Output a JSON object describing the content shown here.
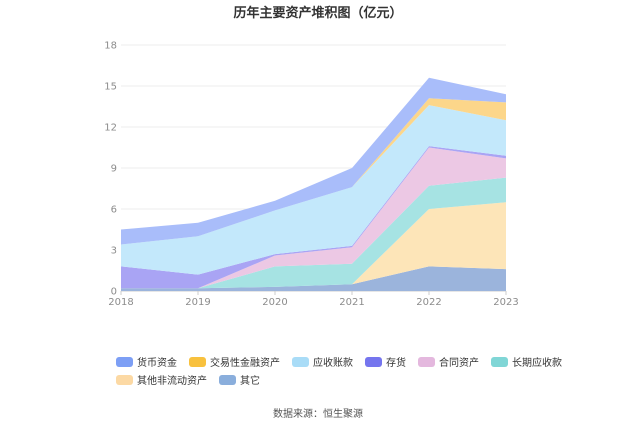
{
  "chart_data": {
    "type": "area",
    "stacked": true,
    "title": "历年主要资产堆积图（亿元）",
    "xlabel": "",
    "ylabel": "",
    "categories": [
      "2018",
      "2019",
      "2020",
      "2021",
      "2022",
      "2023"
    ],
    "ylim": [
      0,
      18
    ],
    "yticks": [
      0,
      3,
      6,
      9,
      12,
      15,
      18
    ],
    "grid": "horizontal",
    "legend_position": "bottom",
    "series": [
      {
        "name": "其它",
        "color": "#9bb4dc",
        "values": [
          0.2,
          0.2,
          0.3,
          0.5,
          1.8,
          1.6
        ]
      },
      {
        "name": "其他非流动资产",
        "color": "#fde5b8",
        "values": [
          0,
          0,
          0,
          0,
          4.2,
          4.9
        ]
      },
      {
        "name": "长期应收款",
        "color": "#a6e3e3",
        "values": [
          0,
          0,
          1.5,
          1.5,
          1.7,
          1.8
        ]
      },
      {
        "name": "合同资产",
        "color": "#ecc8e4",
        "values": [
          0,
          0,
          0.8,
          1.2,
          2.8,
          1.4
        ]
      },
      {
        "name": "存货",
        "color": "#a9a4f4",
        "values": [
          1.6,
          1.0,
          0.1,
          0.1,
          0.1,
          0.2
        ]
      },
      {
        "name": "应收账款",
        "color": "#c3e8fb",
        "values": [
          1.6,
          2.8,
          3.2,
          4.3,
          3.0,
          2.6
        ]
      },
      {
        "name": "交易性金融资产",
        "color": "#fcd68a",
        "values": [
          0,
          0,
          0,
          0,
          0.5,
          1.3
        ]
      },
      {
        "name": "货币资金",
        "color": "#a9bdfa",
        "values": [
          1.1,
          1.0,
          0.7,
          1.4,
          1.5,
          0.6
        ]
      }
    ],
    "legend": [
      {
        "name": "货币资金",
        "color": "#7d9ff5"
      },
      {
        "name": "交易性金融资产",
        "color": "#f8c13e"
      },
      {
        "name": "应收账款",
        "color": "#a9dcf7"
      },
      {
        "name": "存货",
        "color": "#7575ee"
      },
      {
        "name": "合同资产",
        "color": "#e4b8de"
      },
      {
        "name": "长期应收款",
        "color": "#80d6d6"
      },
      {
        "name": "其他非流动资产",
        "color": "#fcd9a4"
      },
      {
        "name": "其它",
        "color": "#8aaedc"
      }
    ]
  },
  "source": "数据来源：恒生聚源"
}
